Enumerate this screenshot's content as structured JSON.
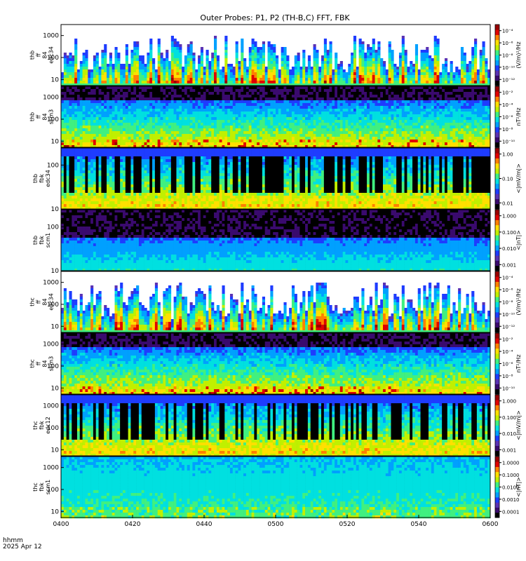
{
  "page": {
    "corner_label_1": "hhmm",
    "corner_label_2": "2025 Apr 12"
  },
  "chart_data": {
    "type": "heatmap",
    "title": "Outer Probes: P1, P2 (TH-B,C) FFT, FBK",
    "x_ticks": [
      "0400",
      "0420",
      "0440",
      "0500",
      "0520",
      "0540",
      "0600"
    ],
    "x_range": [
      "04:00",
      "06:00"
    ],
    "panels": [
      {
        "id": "thb-ffp-edc34",
        "label_lines": [
          "thb",
          "ff",
          "84",
          "edc34"
        ],
        "y_ticks": [
          "1000",
          "100",
          "10"
        ],
        "y_scale": "log",
        "cbar_ticks": [
          "10⁻⁴",
          "10⁻⁶",
          "10⁻⁸",
          "10⁻¹⁰",
          "10⁻¹²"
        ],
        "cbar_label": "(V/m)²/Hz",
        "style": "spiky"
      },
      {
        "id": "thb-ffp-scm3",
        "label_lines": [
          "thb",
          "ff",
          "84",
          "scm3"
        ],
        "y_ticks": [
          "1000",
          "100",
          "10"
        ],
        "y_scale": "log",
        "cbar_ticks": [
          "10⁻²",
          "10⁻⁴",
          "10⁻⁶",
          "10⁻⁸",
          "10⁻¹⁰"
        ],
        "cbar_label": "nT²/Hz",
        "style": "layered"
      },
      {
        "id": "thb-fbk-edc34",
        "label_lines": [
          "thb",
          "fbk",
          "edc34"
        ],
        "y_ticks": [
          "100",
          "10"
        ],
        "y_scale": "log",
        "cbar_ticks": [
          "1.00",
          "0.10",
          "0.01"
        ],
        "cbar_label": "<|mV/m|>",
        "style": "blocky"
      },
      {
        "id": "thb-fbk-scm1",
        "label_lines": [
          "thb",
          "fbk",
          "scm1"
        ],
        "y_ticks": [
          "100",
          "10"
        ],
        "y_scale": "log",
        "cbar_ticks": [
          "1.000",
          "0.100",
          "0.010",
          "0.001"
        ],
        "cbar_label": "<|nT|>",
        "style": "quiet"
      },
      {
        "id": "thc-ffp-edc34",
        "label_lines": [
          "thc",
          "ff",
          "84",
          "edc34"
        ],
        "y_ticks": [
          "1000",
          "100",
          "10"
        ],
        "y_scale": "log",
        "cbar_ticks": [
          "10⁻⁴",
          "10⁻⁶",
          "10⁻⁸",
          "10⁻¹⁰",
          "10⁻¹²"
        ],
        "cbar_label": "(V/m)²/Hz",
        "style": "spiky"
      },
      {
        "id": "thc-ffp-scm3",
        "label_lines": [
          "thc",
          "ff",
          "84",
          "scm3"
        ],
        "y_ticks": [
          "1000",
          "100",
          "10"
        ],
        "y_scale": "log",
        "cbar_ticks": [
          "10⁻²",
          "10⁻⁴",
          "10⁻⁶",
          "10⁻⁸",
          "10⁻¹⁰"
        ],
        "cbar_label": "nT²/Hz",
        "style": "layered"
      },
      {
        "id": "thc-fbk-edc12",
        "label_lines": [
          "thc",
          "fbk",
          "edc12"
        ],
        "y_ticks": [
          "1000",
          "100",
          "10"
        ],
        "y_scale": "log",
        "cbar_ticks": [
          "1.000",
          "0.100",
          "0.010",
          "0.001"
        ],
        "cbar_label": "<|mV/m|>",
        "style": "blocky"
      },
      {
        "id": "thc-fbk-scm1",
        "label_lines": [
          "thc",
          "fbk",
          "scm1"
        ],
        "y_ticks": [
          "1000",
          "100",
          "10"
        ],
        "y_scale": "log",
        "cbar_ticks": [
          "1.0000",
          "0.1000",
          "0.0100",
          "0.0010",
          "0.0001"
        ],
        "cbar_label": "<|nT|>",
        "style": "cyan"
      }
    ],
    "colormap": [
      "#000000",
      "#3a0a6e",
      "#5a32b4",
      "#1e3cff",
      "#00a0ff",
      "#00e0e0",
      "#40f080",
      "#c0f000",
      "#ffe000",
      "#ff8000",
      "#e00000",
      "#9a0000"
    ]
  }
}
